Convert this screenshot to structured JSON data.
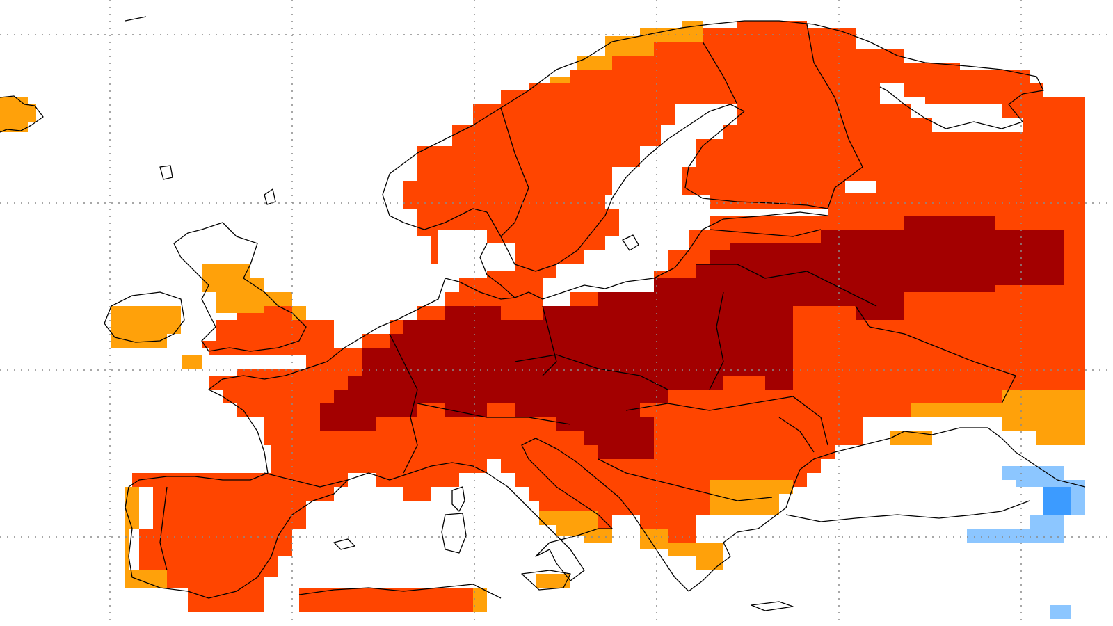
{
  "map": {
    "categories": [
      {
        "id": "strong-warm",
        "color": "#a30000"
      },
      {
        "id": "warm",
        "color": "#ff4500"
      },
      {
        "id": "slightly-warm",
        "color": "#ffa10a"
      },
      {
        "id": "slightly-cool",
        "color": "#8cc6ff"
      },
      {
        "id": "cool",
        "color": "#3c9bff"
      }
    ],
    "background": "#ffffff",
    "gridline_color": "#8a8a8a",
    "coastline_color": "#000000",
    "gridlines": "dotted",
    "labels_printed": false
  }
}
